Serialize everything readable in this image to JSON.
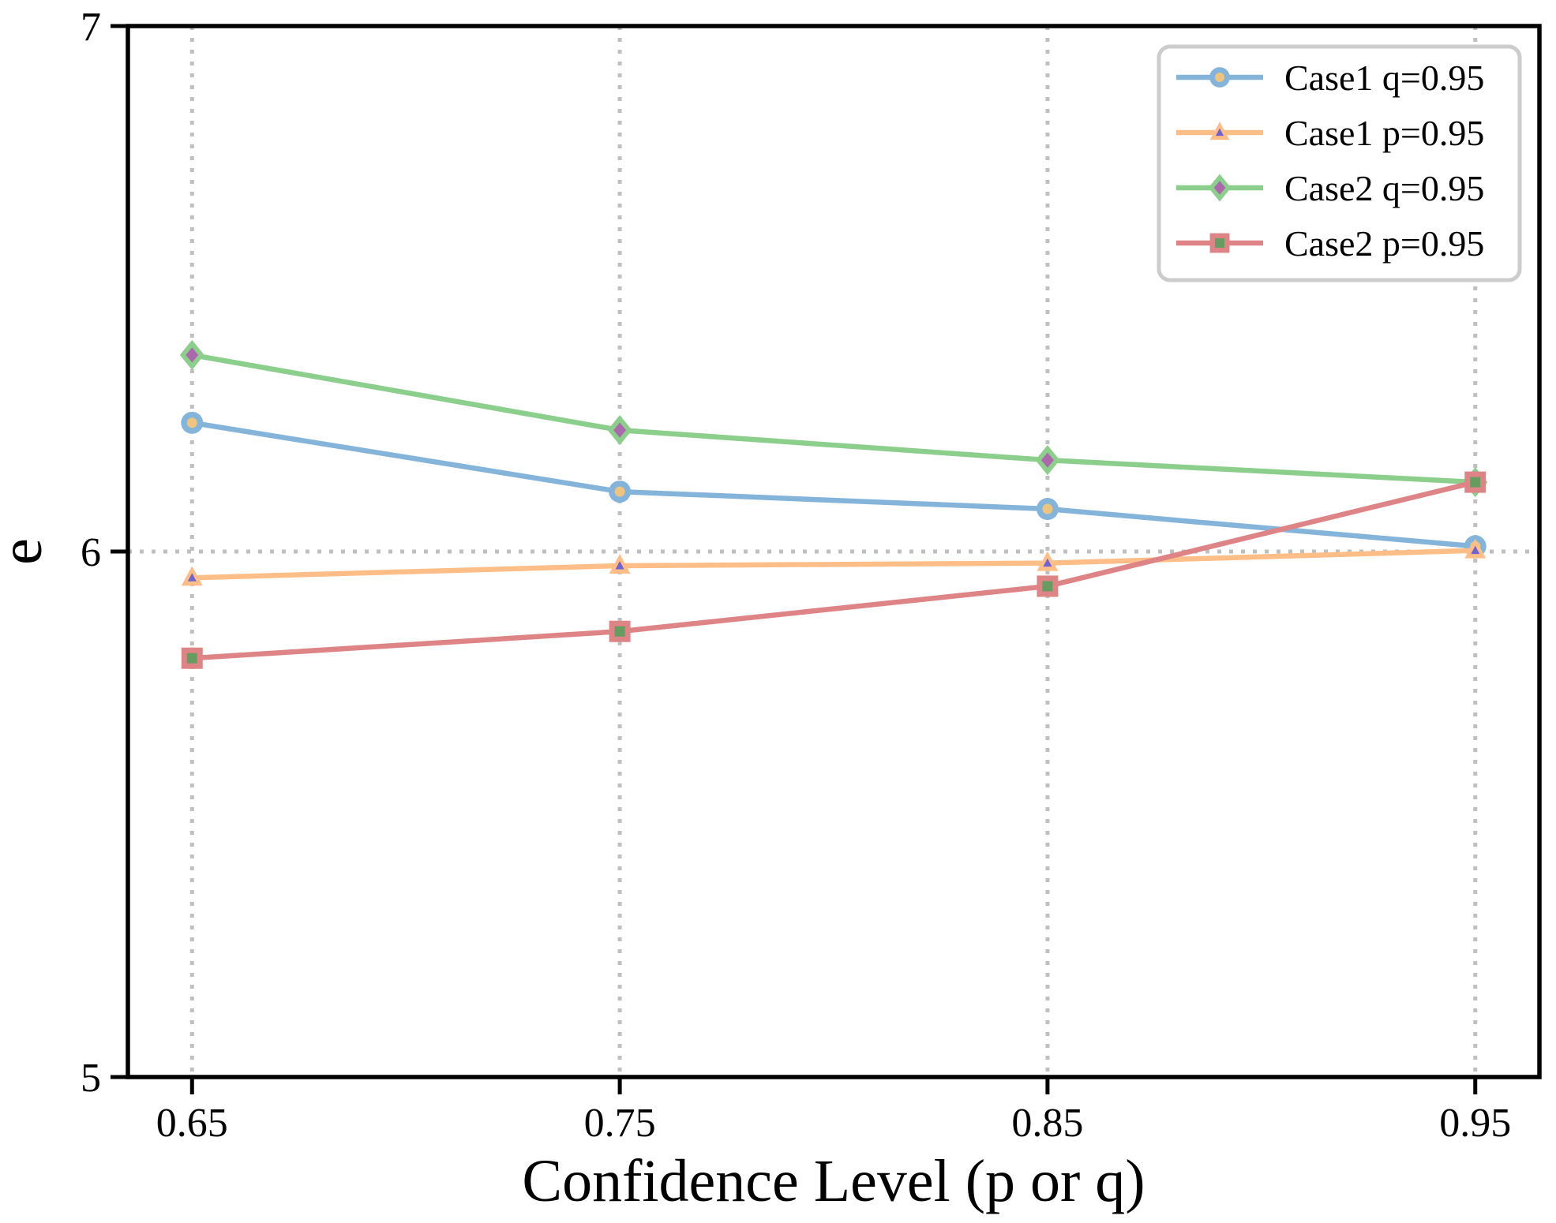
{
  "figure": {
    "background": "#FFFFFF",
    "axis_color": "#000000",
    "xlabel": "Confidence Level (p or q)",
    "ylabel": "e",
    "x_tick_labels": [
      "0.65",
      "0.75",
      "0.85",
      "0.95"
    ],
    "y_tick_labels": [
      "5",
      "6",
      "7"
    ]
  },
  "chart_data": {
    "type": "line",
    "title": "",
    "xlabel": "Confidence Level (p or q)",
    "ylabel": "e",
    "x": [
      0.65,
      0.75,
      0.85,
      0.95
    ],
    "xlim": [
      0.635,
      0.965
    ],
    "ylim": [
      5,
      7
    ],
    "x_ticks": [
      0.65,
      0.75,
      0.85,
      0.95
    ],
    "y_ticks": [
      5,
      6,
      7
    ],
    "grid": {
      "style": "dotted",
      "color": "#BFBFBF",
      "x_lines": [
        0.65,
        0.75,
        0.85,
        0.95
      ],
      "y_lines": [
        6
      ]
    },
    "legend": {
      "position": "upper right",
      "border_color": "#CCCCCC",
      "background": "#FFFFFF",
      "entries": [
        "Case1 q=0.95",
        "Case1 p=0.95",
        "Case2 q=0.95",
        "Case2 p=0.95"
      ]
    },
    "series": [
      {
        "name": "Case1 q=0.95",
        "marker": "circle",
        "color": "#85B4DB",
        "marker_face": "#EDC57F",
        "values": [
          6.245,
          6.114,
          6.081,
          6.01
        ]
      },
      {
        "name": "Case1 p=0.95",
        "marker": "triangle",
        "color": "#FFBE87",
        "marker_face": "#6F63D2",
        "values": [
          5.95,
          5.973,
          5.978,
          6.002
        ]
      },
      {
        "name": "Case2 q=0.95",
        "marker": "diamond",
        "color": "#8CCE8C",
        "marker_face": "#AC68AC",
        "values": [
          6.374,
          6.231,
          6.174,
          6.132
        ]
      },
      {
        "name": "Case2 p=0.95",
        "marker": "square",
        "color": "#DF8486",
        "marker_face": "#679C61",
        "values": [
          5.797,
          5.848,
          5.934,
          6.132
        ]
      }
    ]
  }
}
